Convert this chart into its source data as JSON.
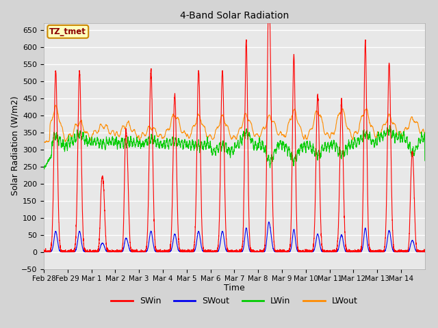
{
  "title": "4-Band Solar Radiation",
  "xlabel": "Time",
  "ylabel": "Solar Radiation (W/m2)",
  "ylim": [
    -50,
    670
  ],
  "fig_bg_color": "#d4d4d4",
  "plot_bg_color": "#e8e8e8",
  "grid_color": "#ffffff",
  "annotation_text": "TZ_tmet",
  "annotation_color": "#8b0000",
  "annotation_bg": "#ffffc0",
  "annotation_border": "#cc8800",
  "colors": {
    "SWin": "#ff0000",
    "SWout": "#0000ee",
    "LWin": "#00cc00",
    "LWout": "#ff8c00"
  },
  "x_tick_labels": [
    "Feb 28",
    "Feb 29",
    "Mar 1",
    "Mar 2",
    "Mar 3",
    "Mar 4",
    "Mar 5",
    "Mar 6",
    "Mar 7",
    "Mar 8",
    "Mar 9",
    "Mar 10",
    "Mar 11",
    "Mar 12",
    "Mar 13",
    "Mar 14"
  ],
  "num_days": 16,
  "points_per_day": 288,
  "legend_entries": [
    "SWin",
    "SWout",
    "LWin",
    "LWout"
  ],
  "line_width": 0.8
}
